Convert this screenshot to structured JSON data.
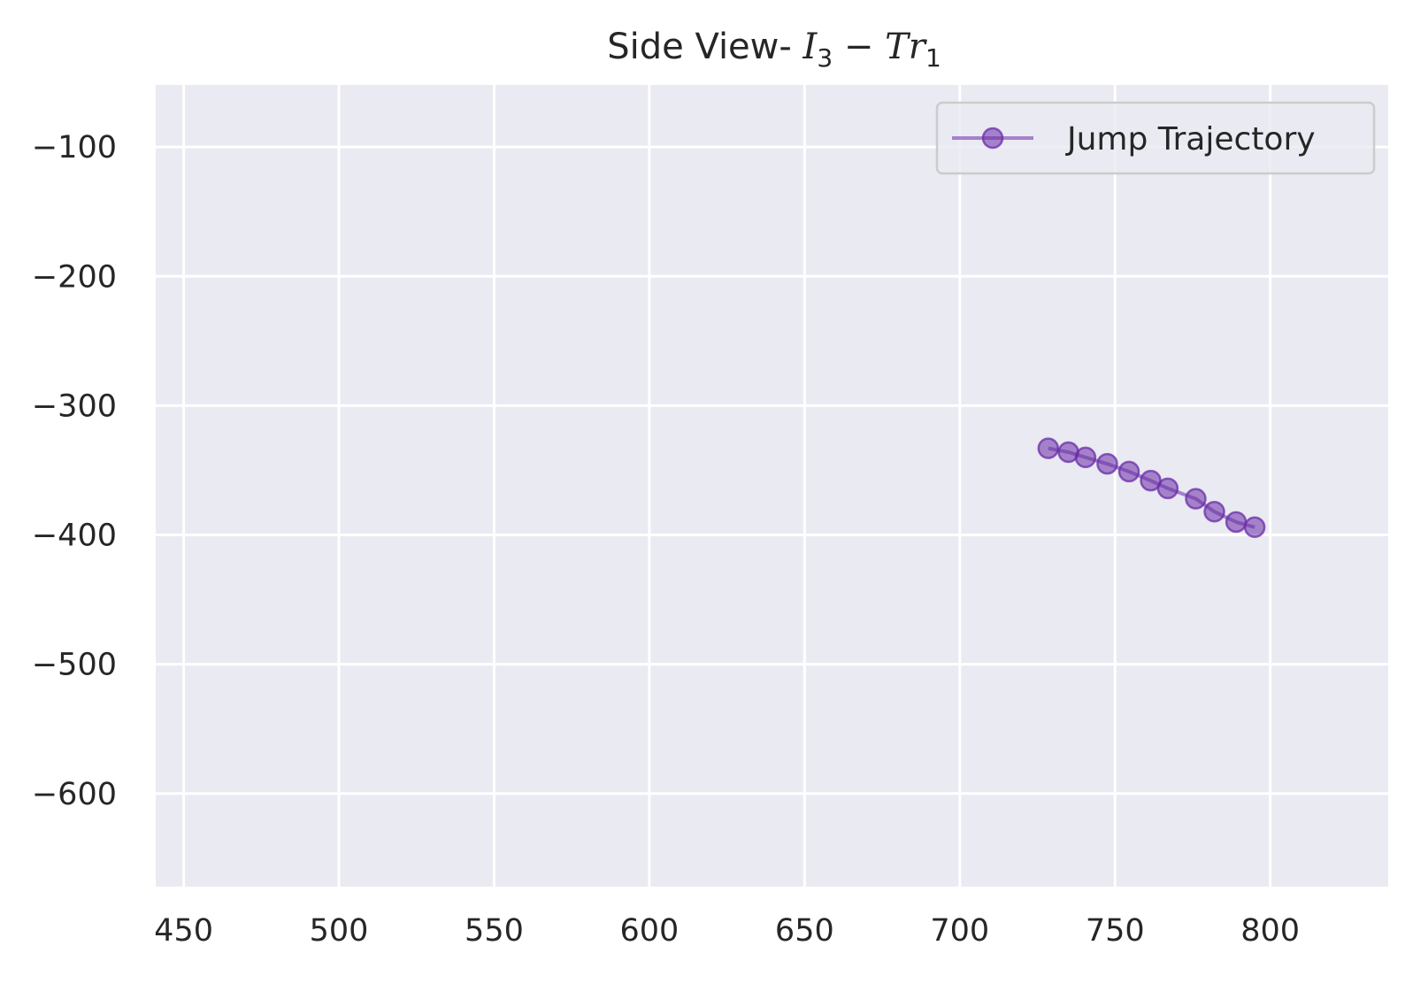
{
  "chart_data": {
    "type": "line",
    "title": {
      "prefix": "Side View- ",
      "var1": "I",
      "sub1": "3",
      "op": " − ",
      "var2": "Tr",
      "sub2": "1"
    },
    "xlabel": "",
    "ylabel": "",
    "xlim": [
      441,
      838
    ],
    "ylim": [
      -672,
      -52
    ],
    "x_ticks": [
      450,
      500,
      550,
      600,
      650,
      700,
      750,
      800
    ],
    "x_tick_labels": [
      "450",
      "500",
      "550",
      "600",
      "650",
      "700",
      "750",
      "800"
    ],
    "y_ticks": [
      -100,
      -200,
      -300,
      -400,
      -500,
      -600
    ],
    "y_tick_labels": [
      "−100",
      "−200",
      "−300",
      "−400",
      "−500",
      "−600"
    ],
    "grid": true,
    "legend_position": "top-right",
    "series": [
      {
        "name": "Jump Trajectory",
        "color": "#6a2ca8",
        "marker": "circle",
        "x": [
          728.5,
          735,
          740.5,
          747.5,
          754.5,
          761.5,
          767,
          776,
          782,
          789,
          795
        ],
        "y": [
          -333,
          -336,
          -340,
          -345,
          -351,
          -358,
          -364,
          -372,
          -382,
          -390,
          -394
        ]
      }
    ],
    "colors": {
      "plot_background": "#eaeaf2",
      "grid": "#ffffff",
      "text": "#262626"
    }
  }
}
